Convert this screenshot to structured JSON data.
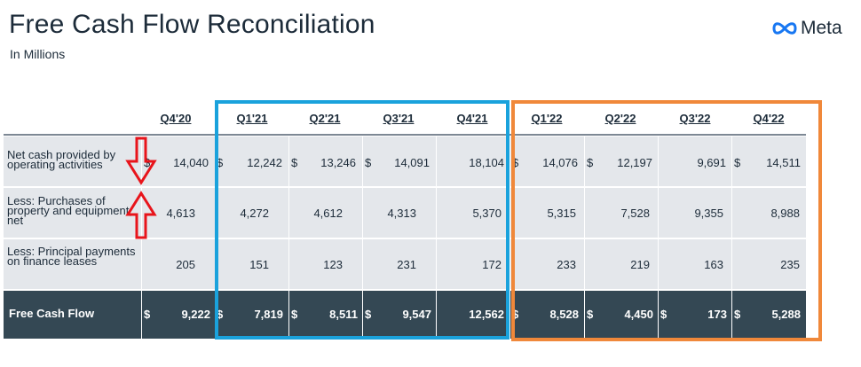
{
  "title": "Free Cash Flow Reconciliation",
  "subtitle": "In Millions",
  "logo": {
    "text": "Meta",
    "icon": "meta-infinity-icon"
  },
  "columns": [
    "Q4'20",
    "Q1'21",
    "Q2'21",
    "Q3'21",
    "Q4'21",
    "Q1'22",
    "Q2'22",
    "Q3'22",
    "Q4'22"
  ],
  "rows": [
    {
      "label": "Net cash provided by operating activities",
      "currency": "$",
      "values": [
        "14,040",
        "12,242",
        "13,246",
        "14,091",
        "18,104",
        "14,076",
        "12,197",
        "9,691",
        "14,511"
      ]
    },
    {
      "label": "Less: Purchases of property and equipment, net",
      "currency": "",
      "values": [
        "4,613",
        "4,272",
        "4,612",
        "4,313",
        "5,370",
        "5,315",
        "7,528",
        "9,355",
        "8,988"
      ]
    },
    {
      "label": "Less: Principal payments on finance leases",
      "currency": "",
      "values": [
        "205",
        "151",
        "123",
        "231",
        "172",
        "233",
        "219",
        "163",
        "235"
      ]
    }
  ],
  "total_row": {
    "label": "Free Cash Flow",
    "currency": "$",
    "values": [
      "9,222",
      "7,819",
      "8,511",
      "9,547",
      "12,562",
      "8,528",
      "4,450",
      "173",
      "5,288"
    ]
  },
  "highlights": {
    "blue_color": "#1aa2dc",
    "orange_color": "#f0883a",
    "arrow_color": "#e8141b"
  }
}
